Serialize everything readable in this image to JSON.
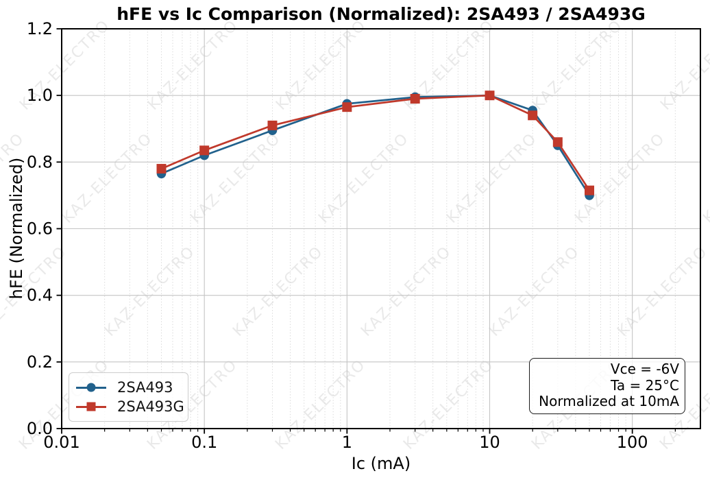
{
  "title": "hFE vs Ic Comparison (Normalized): 2SA493 / 2SA493G",
  "watermark": {
    "text": "KAZ-ELECTRO",
    "color": "#e9e9e9"
  },
  "annotation": {
    "lines": [
      "Vce = -6V",
      "Ta = 25°C",
      "Normalized at 10mA"
    ]
  },
  "chart_data": {
    "type": "line",
    "title": "hFE vs Ic Comparison (Normalized): 2SA493 / 2SA493G",
    "xlabel": "Ic (mA)",
    "ylabel": "hFE (Normalized)",
    "xscale": "log",
    "xlim": [
      0.01,
      300
    ],
    "ylim": [
      0.0,
      1.2
    ],
    "grid": true,
    "grid_color_major": "#c4c4c4",
    "grid_color_minor": "#dadada",
    "x": [
      0.05,
      0.1,
      0.3,
      1,
      3,
      10,
      20,
      30,
      50
    ],
    "series": [
      {
        "name": "2SA493",
        "color": "#21618c",
        "marker": "circle",
        "values": [
          0.765,
          0.82,
          0.895,
          0.975,
          0.995,
          1.0,
          0.955,
          0.85,
          0.7
        ]
      },
      {
        "name": "2SA493G",
        "color": "#c0392b",
        "marker": "square",
        "values": [
          0.78,
          0.835,
          0.91,
          0.965,
          0.99,
          1.0,
          0.94,
          0.86,
          0.715
        ]
      }
    ],
    "xticks": {
      "values": [
        0.01,
        0.1,
        1,
        10,
        100
      ],
      "labels": [
        "0.01",
        "0.1",
        "1",
        "10",
        "100"
      ]
    },
    "yticks": {
      "values": [
        0.0,
        0.2,
        0.4,
        0.6,
        0.8,
        1.0,
        1.2
      ],
      "labels": [
        "0.0",
        "0.2",
        "0.4",
        "0.6",
        "0.8",
        "1.0",
        "1.2"
      ]
    },
    "legend_position": "lower left"
  }
}
